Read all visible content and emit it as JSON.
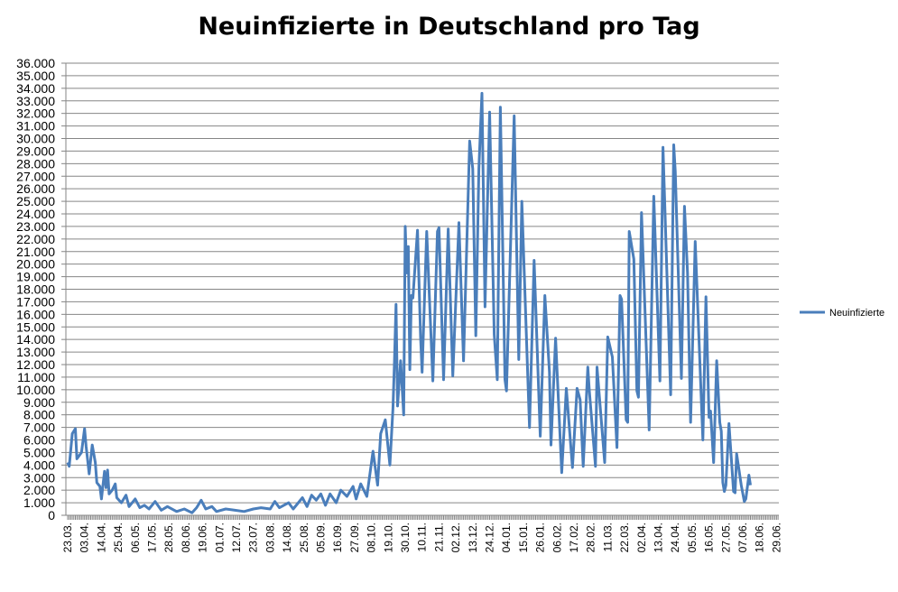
{
  "chart_data": {
    "type": "line",
    "title": "Neuinfizierte in Deutschland pro Tag",
    "xlabel": "",
    "ylabel": "",
    "xlim": [
      "2020-03-23",
      "2021-06-29"
    ],
    "ylim": [
      0,
      36000
    ],
    "y_ticks": [
      "0",
      "1.000",
      "2.000",
      "3.000",
      "4.000",
      "5.000",
      "6.000",
      "7.000",
      "8.000",
      "9.000",
      "10.000",
      "11.000",
      "12.000",
      "13.000",
      "14.000",
      "15.000",
      "16.000",
      "17.000",
      "18.000",
      "19.000",
      "20.000",
      "21.000",
      "22.000",
      "23.000",
      "24.000",
      "25.000",
      "26.000",
      "27.000",
      "28.000",
      "29.000",
      "30.000",
      "31.000",
      "32.000",
      "33.000",
      "34.000",
      "35.000",
      "36.000"
    ],
    "x_ticks": [
      "23.03.",
      "03.04.",
      "14.04.",
      "25.04.",
      "06.05.",
      "17.05.",
      "28.05.",
      "08.06.",
      "19.06.",
      "01.07.",
      "12.07.",
      "23.07.",
      "03.08.",
      "14.08.",
      "25.08.",
      "05.09.",
      "16.09.",
      "27.09.",
      "08.10.",
      "19.10.",
      "30.10.",
      "10.11.",
      "21.11.",
      "02.12.",
      "13.12.",
      "24.12.",
      "04.01.",
      "15.01.",
      "26.01.",
      "06.02.",
      "17.02.",
      "28.02.",
      "11.03.",
      "22.03.",
      "02.04.",
      "13.04.",
      "24.04.",
      "05.05.",
      "16.05.",
      "27.05.",
      "07.06.",
      "18.06.",
      "29.06."
    ],
    "grid": true,
    "legend_position": "right",
    "series": [
      {
        "name": "Neuinfizierte",
        "color": "#4a7ebb",
        "points": [
          [
            "2020-03-23",
            4200
          ],
          [
            "2020-03-24",
            3900
          ],
          [
            "2020-03-26",
            6500
          ],
          [
            "2020-03-28",
            6900
          ],
          [
            "2020-03-29",
            4500
          ],
          [
            "2020-04-01",
            5000
          ],
          [
            "2020-04-03",
            6900
          ],
          [
            "2020-04-04",
            5500
          ],
          [
            "2020-04-06",
            3300
          ],
          [
            "2020-04-08",
            5600
          ],
          [
            "2020-04-10",
            4200
          ],
          [
            "2020-04-11",
            2600
          ],
          [
            "2020-04-13",
            2300
          ],
          [
            "2020-04-14",
            1300
          ],
          [
            "2020-04-16",
            3500
          ],
          [
            "2020-04-17",
            2200
          ],
          [
            "2020-04-18",
            3600
          ],
          [
            "2020-04-19",
            1700
          ],
          [
            "2020-04-21",
            2000
          ],
          [
            "2020-04-23",
            2500
          ],
          [
            "2020-04-24",
            1400
          ],
          [
            "2020-04-27",
            1000
          ],
          [
            "2020-04-30",
            1600
          ],
          [
            "2020-05-02",
            700
          ],
          [
            "2020-05-06",
            1300
          ],
          [
            "2020-05-09",
            600
          ],
          [
            "2020-05-12",
            800
          ],
          [
            "2020-05-15",
            500
          ],
          [
            "2020-05-19",
            1100
          ],
          [
            "2020-05-23",
            400
          ],
          [
            "2020-05-27",
            700
          ],
          [
            "2020-06-02",
            300
          ],
          [
            "2020-06-07",
            500
          ],
          [
            "2020-06-12",
            200
          ],
          [
            "2020-06-15",
            600
          ],
          [
            "2020-06-18",
            1200
          ],
          [
            "2020-06-21",
            500
          ],
          [
            "2020-06-25",
            700
          ],
          [
            "2020-06-28",
            300
          ],
          [
            "2020-07-04",
            500
          ],
          [
            "2020-07-10",
            400
          ],
          [
            "2020-07-16",
            300
          ],
          [
            "2020-07-22",
            500
          ],
          [
            "2020-07-27",
            600
          ],
          [
            "2020-08-02",
            500
          ],
          [
            "2020-08-05",
            1100
          ],
          [
            "2020-08-08",
            600
          ],
          [
            "2020-08-14",
            1000
          ],
          [
            "2020-08-17",
            500
          ],
          [
            "2020-08-23",
            1400
          ],
          [
            "2020-08-26",
            700
          ],
          [
            "2020-08-29",
            1600
          ],
          [
            "2020-09-01",
            1200
          ],
          [
            "2020-09-04",
            1700
          ],
          [
            "2020-09-07",
            800
          ],
          [
            "2020-09-10",
            1700
          ],
          [
            "2020-09-14",
            1000
          ],
          [
            "2020-09-17",
            2000
          ],
          [
            "2020-09-21",
            1500
          ],
          [
            "2020-09-23",
            1900
          ],
          [
            "2020-09-25",
            2300
          ],
          [
            "2020-09-27",
            1300
          ],
          [
            "2020-09-30",
            2500
          ],
          [
            "2020-10-04",
            1500
          ],
          [
            "2020-10-08",
            5100
          ],
          [
            "2020-10-11",
            2400
          ],
          [
            "2020-10-13",
            6500
          ],
          [
            "2020-10-16",
            7600
          ],
          [
            "2020-10-19",
            4000
          ],
          [
            "2020-10-21",
            8500
          ],
          [
            "2020-10-22",
            12300
          ],
          [
            "2020-10-23",
            16800
          ],
          [
            "2020-10-24",
            8700
          ],
          [
            "2020-10-26",
            12300
          ],
          [
            "2020-10-28",
            8000
          ],
          [
            "2020-10-29",
            23000
          ],
          [
            "2020-10-30",
            19300
          ],
          [
            "2020-10-31",
            21400
          ],
          [
            "2020-11-01",
            11600
          ],
          [
            "2020-11-02",
            17500
          ],
          [
            "2020-11-03",
            17300
          ],
          [
            "2020-11-06",
            22700
          ],
          [
            "2020-11-08",
            14200
          ],
          [
            "2020-11-09",
            11400
          ],
          [
            "2020-11-12",
            22600
          ],
          [
            "2020-11-16",
            10700
          ],
          [
            "2020-11-19",
            22600
          ],
          [
            "2020-11-20",
            22900
          ],
          [
            "2020-11-23",
            10800
          ],
          [
            "2020-11-26",
            22800
          ],
          [
            "2020-11-29",
            11100
          ],
          [
            "2020-12-03",
            23300
          ],
          [
            "2020-12-06",
            12300
          ],
          [
            "2020-12-10",
            29800
          ],
          [
            "2020-12-12",
            27600
          ],
          [
            "2020-12-14",
            14300
          ],
          [
            "2020-12-16",
            27600
          ],
          [
            "2020-12-18",
            33600
          ],
          [
            "2020-12-20",
            16600
          ],
          [
            "2020-12-23",
            32100
          ],
          [
            "2020-12-26",
            14400
          ],
          [
            "2020-12-28",
            10800
          ],
          [
            "2020-12-30",
            32500
          ],
          [
            "2021-01-02",
            10800
          ],
          [
            "2021-01-03",
            9900
          ],
          [
            "2021-01-08",
            31800
          ],
          [
            "2021-01-11",
            12400
          ],
          [
            "2021-01-13",
            25000
          ],
          [
            "2021-01-18",
            7000
          ],
          [
            "2021-01-21",
            20300
          ],
          [
            "2021-01-25",
            6300
          ],
          [
            "2021-01-28",
            17500
          ],
          [
            "2021-01-31",
            11400
          ],
          [
            "2021-02-01",
            5600
          ],
          [
            "2021-02-04",
            14100
          ],
          [
            "2021-02-08",
            3400
          ],
          [
            "2021-02-11",
            10100
          ],
          [
            "2021-02-15",
            3800
          ],
          [
            "2021-02-18",
            10100
          ],
          [
            "2021-02-20",
            9200
          ],
          [
            "2021-02-22",
            3900
          ],
          [
            "2021-02-25",
            11800
          ],
          [
            "2021-02-26",
            9900
          ],
          [
            "2021-03-02",
            3900
          ],
          [
            "2021-03-03",
            11800
          ],
          [
            "2021-03-08",
            4200
          ],
          [
            "2021-03-10",
            14200
          ],
          [
            "2021-03-13",
            12600
          ],
          [
            "2021-03-16",
            5400
          ],
          [
            "2021-03-18",
            17500
          ],
          [
            "2021-03-19",
            17200
          ],
          [
            "2021-03-22",
            7600
          ],
          [
            "2021-03-23",
            7400
          ],
          [
            "2021-03-24",
            22600
          ],
          [
            "2021-03-27",
            20400
          ],
          [
            "2021-03-29",
            9900
          ],
          [
            "2021-03-30",
            9400
          ],
          [
            "2021-04-01",
            24100
          ],
          [
            "2021-04-02",
            20700
          ],
          [
            "2021-04-06",
            6800
          ],
          [
            "2021-04-09",
            25400
          ],
          [
            "2021-04-13",
            10700
          ],
          [
            "2021-04-15",
            29300
          ],
          [
            "2021-04-16",
            25400
          ],
          [
            "2021-04-20",
            9600
          ],
          [
            "2021-04-22",
            29500
          ],
          [
            "2021-04-23",
            27400
          ],
          [
            "2021-04-27",
            10900
          ],
          [
            "2021-04-29",
            24600
          ],
          [
            "2021-05-01",
            19300
          ],
          [
            "2021-05-03",
            7400
          ],
          [
            "2021-05-06",
            21800
          ],
          [
            "2021-05-11",
            6000
          ],
          [
            "2021-05-13",
            17400
          ],
          [
            "2021-05-15",
            7800
          ],
          [
            "2021-05-16",
            8300
          ],
          [
            "2021-05-18",
            4200
          ],
          [
            "2021-05-20",
            12300
          ],
          [
            "2021-05-22",
            7400
          ],
          [
            "2021-05-23",
            6700
          ],
          [
            "2021-05-24",
            2600
          ],
          [
            "2021-05-25",
            1900
          ],
          [
            "2021-05-26",
            2400
          ],
          [
            "2021-05-28",
            7300
          ],
          [
            "2021-05-31",
            1900
          ],
          [
            "2021-06-01",
            1800
          ],
          [
            "2021-06-02",
            4900
          ],
          [
            "2021-06-05",
            2400
          ],
          [
            "2021-06-07",
            1100
          ],
          [
            "2021-06-08",
            1300
          ],
          [
            "2021-06-10",
            3200
          ],
          [
            "2021-06-11",
            2400
          ]
        ]
      }
    ]
  }
}
